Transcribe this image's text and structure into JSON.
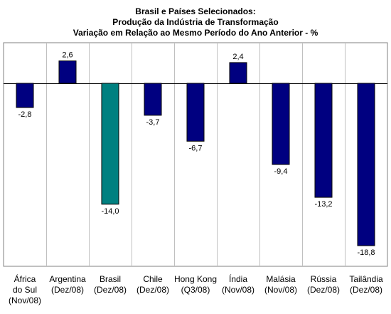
{
  "chart_data": {
    "type": "bar",
    "title": "Brasil e Países Selecionados:",
    "subtitle": "Produção da Indústria de Transformação",
    "subtitle2": "Variação em Relação ao  Mesmo Período do Ano Anterior - %",
    "categories": [
      [
        "África",
        "do Sul",
        "(Nov/08)"
      ],
      [
        "Argentina",
        "(Dez/08)"
      ],
      [
        "Brasil",
        "(Dez/08)"
      ],
      [
        "Chile",
        "(Dez/08)"
      ],
      [
        "Hong Kong",
        "(Q3/08)"
      ],
      [
        "Índia",
        "(Nov/08)"
      ],
      [
        "Malásia",
        "(Nov/08)"
      ],
      [
        "Rússia",
        "(Dez/08)"
      ],
      [
        "Tailândia",
        "(Dez/08)"
      ]
    ],
    "values": [
      -2.8,
      2.6,
      -14.0,
      -3.7,
      -6.7,
      2.4,
      -9.4,
      -13.2,
      -18.8
    ],
    "value_labels": [
      "-2,8",
      "2,6",
      "-14,0",
      "-3,7",
      "-6,7",
      "2,4",
      "-9,4",
      "-13,2",
      "-18,8"
    ],
    "ylim": [
      -20,
      5
    ],
    "grid": "vertical category separators",
    "colors": {
      "bar": "#000080",
      "highlight": "#008080",
      "highlight_index": 2,
      "bar_stroke": "#000000",
      "frame": "#808080",
      "grid": "#c0c0c0"
    }
  }
}
